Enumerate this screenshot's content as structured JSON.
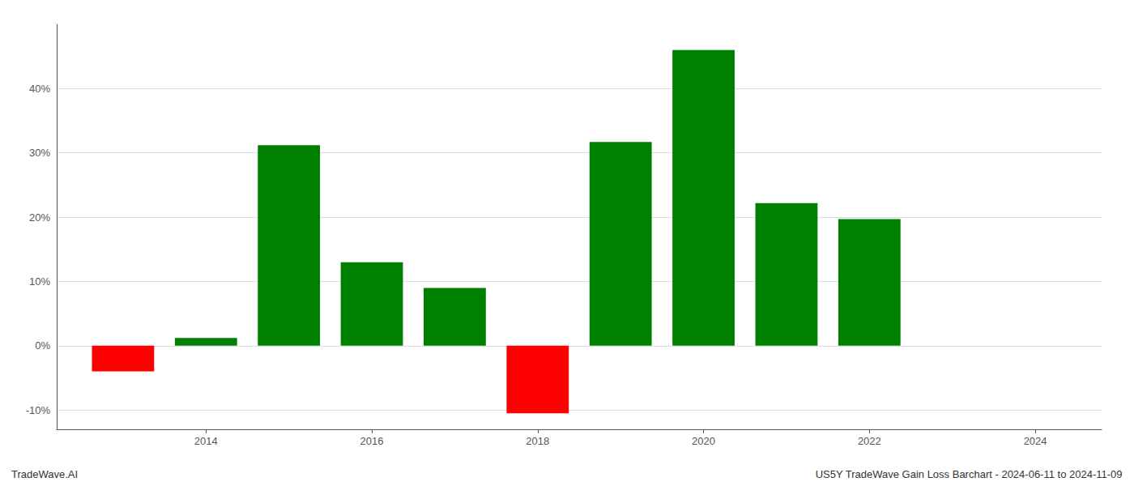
{
  "chart_data": {
    "type": "bar",
    "title": "US5Y TradeWave Gain Loss Barchart - 2024-06-11 to 2024-11-09",
    "annotations": [
      "TradeWave.AI"
    ],
    "x": [
      2013,
      2014,
      2015,
      2016,
      2017,
      2018,
      2019,
      2020,
      2021,
      2022
    ],
    "values": [
      -4.0,
      1.2,
      31.2,
      13.0,
      9.0,
      -10.5,
      31.7,
      46.0,
      22.2,
      19.7
    ],
    "colors": [
      "#ff0000",
      "#008000",
      "#008000",
      "#008000",
      "#008000",
      "#ff0000",
      "#008000",
      "#008000",
      "#008000",
      "#008000"
    ],
    "xlim": [
      2012.2,
      2024.8
    ],
    "xticks": [
      2014,
      2016,
      2018,
      2020,
      2022,
      2024
    ],
    "ylim": [
      -13,
      50
    ],
    "yticks": [
      {
        "value": -10,
        "label": "-10%"
      },
      {
        "value": 0,
        "label": "0%"
      },
      {
        "value": 10,
        "label": "10%"
      },
      {
        "value": 20,
        "label": "20%"
      },
      {
        "value": 30,
        "label": "30%"
      },
      {
        "value": 40,
        "label": "40%"
      }
    ],
    "grid": true
  }
}
